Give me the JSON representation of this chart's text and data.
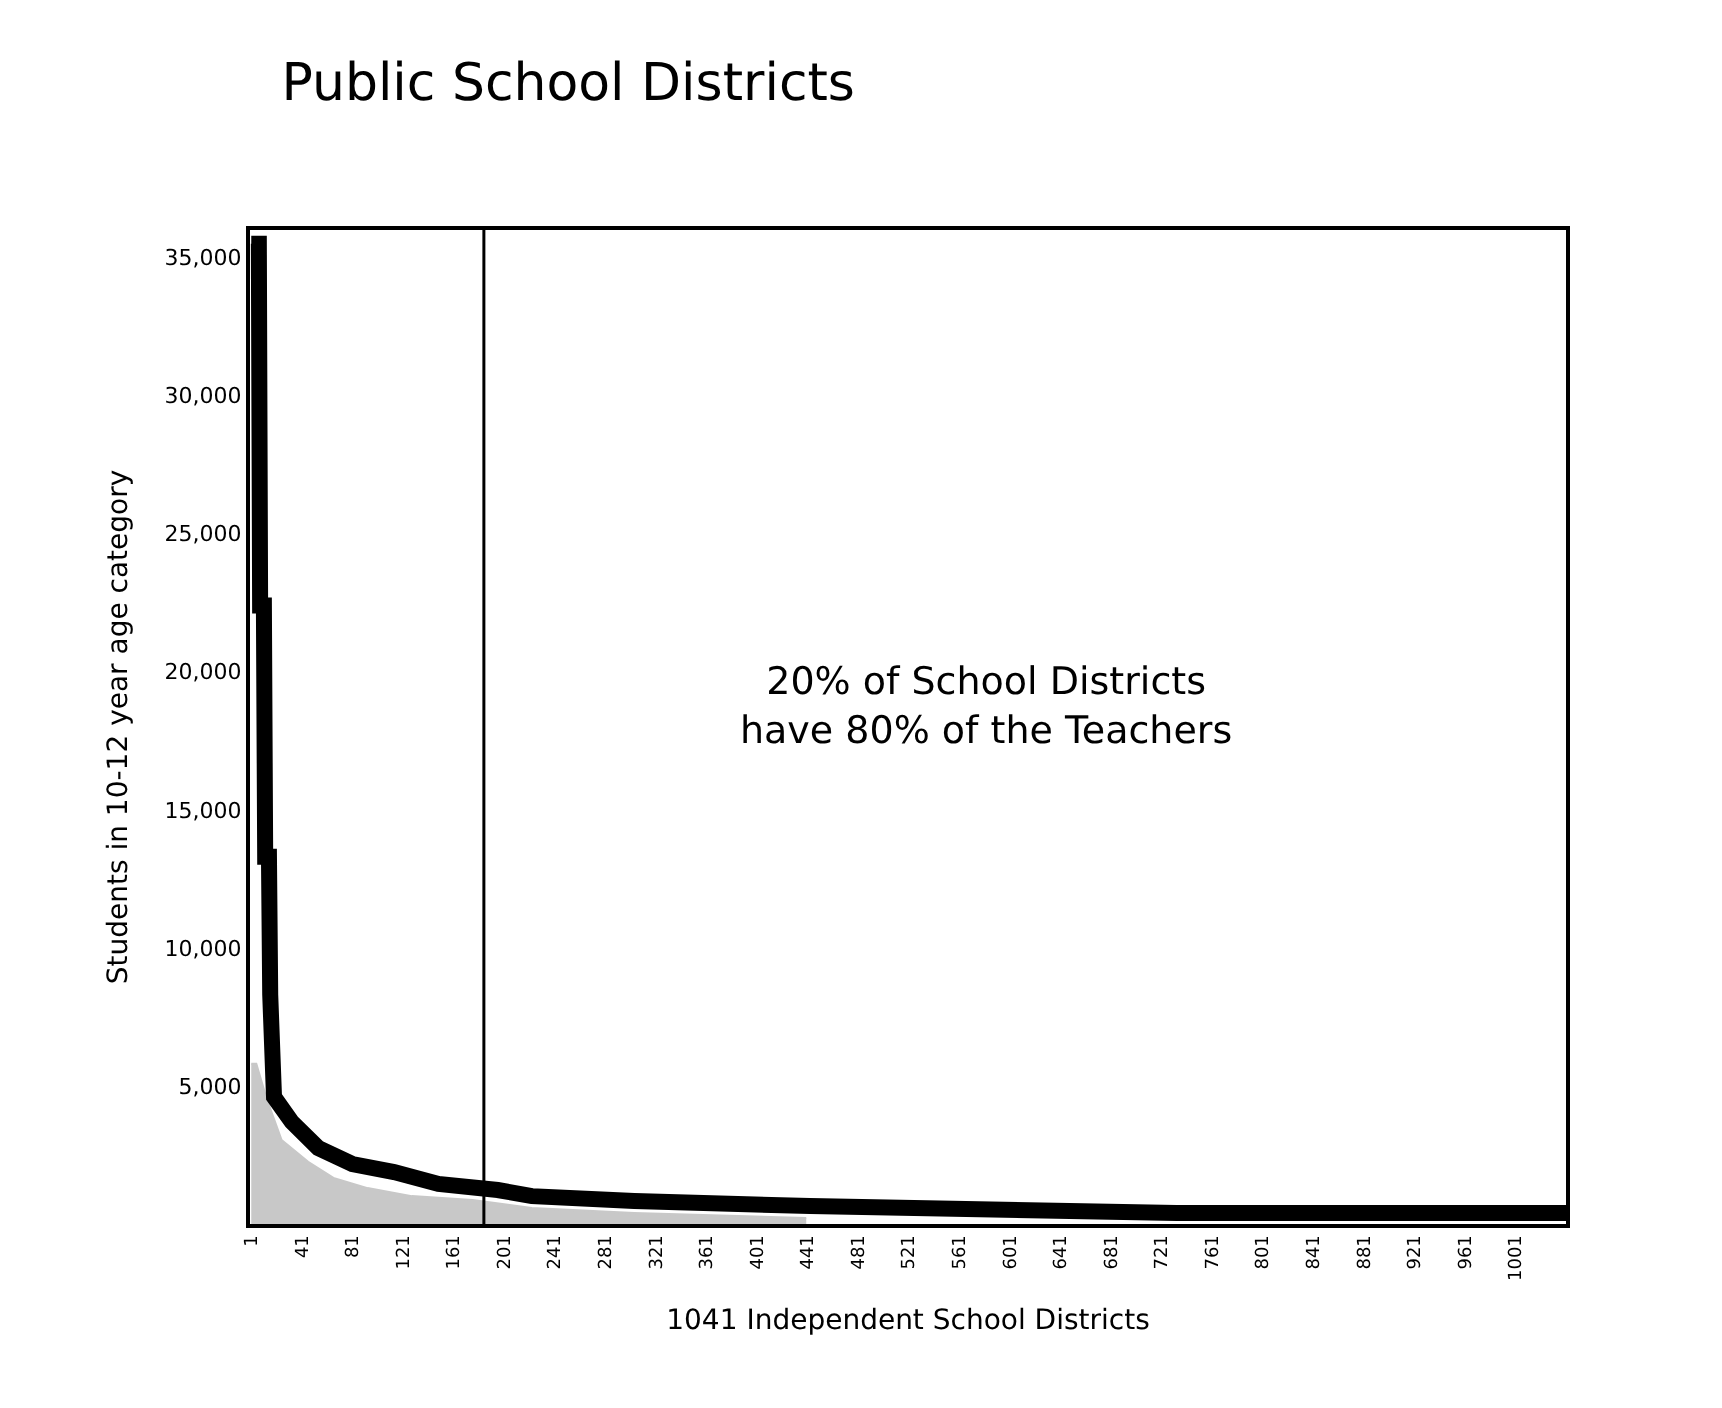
{
  "chart_data": {
    "type": "line",
    "title": "Public School Districts",
    "xlabel": "1041 Independent School Districts",
    "ylabel": "Students in 10-12 year age category",
    "annotations": [
      "20% of School Districts\nhave 80% of the Teachers"
    ],
    "xlim": [
      0,
      1041
    ],
    "xticks": [
      1,
      41,
      81,
      121,
      161,
      201,
      241,
      281,
      321,
      361,
      401,
      441,
      481,
      521,
      561,
      601,
      641,
      681,
      721,
      761,
      801,
      841,
      881,
      921,
      961,
      1001
    ],
    "ylim": [
      0,
      36000
    ],
    "yticks": [
      {
        "value": 5000,
        "label": "5,000"
      },
      {
        "value": 10000,
        "label": "10,000"
      },
      {
        "value": 15000,
        "label": "15,000"
      },
      {
        "value": 20000,
        "label": "20,000"
      },
      {
        "value": 25000,
        "label": "25,000"
      },
      {
        "value": 30000,
        "label": "30,000"
      },
      {
        "value": 35000,
        "label": "35,000"
      }
    ],
    "grid": false,
    "marker": "none",
    "line_style": "solid",
    "ref_lines": [
      {
        "axis": "x",
        "value": 185,
        "color": "#000000"
      }
    ],
    "series": [
      {
        "color": "#000000",
        "x": [
          1,
          7,
          8,
          11,
          12,
          15,
          16,
          19,
          33,
          54,
          81,
          114,
          149,
          196,
          223,
          304,
          443,
          733,
          1041
        ],
        "values": [
          35500,
          35500,
          22400,
          22400,
          13300,
          13300,
          8300,
          4600,
          3700,
          2750,
          2170,
          1880,
          1450,
          1230,
          1010,
          830,
          650,
          400,
          400
        ]
      },
      {
        "type": "area",
        "color": "#c8c8c8",
        "x": [
          1,
          5,
          13,
          25,
          46,
          66,
          93,
          128,
          176,
          223,
          304,
          440
        ],
        "values": [
          5800,
          5800,
          4560,
          3040,
          2250,
          1670,
          1300,
          1010,
          870,
          580,
          400,
          220
        ]
      }
    ]
  }
}
